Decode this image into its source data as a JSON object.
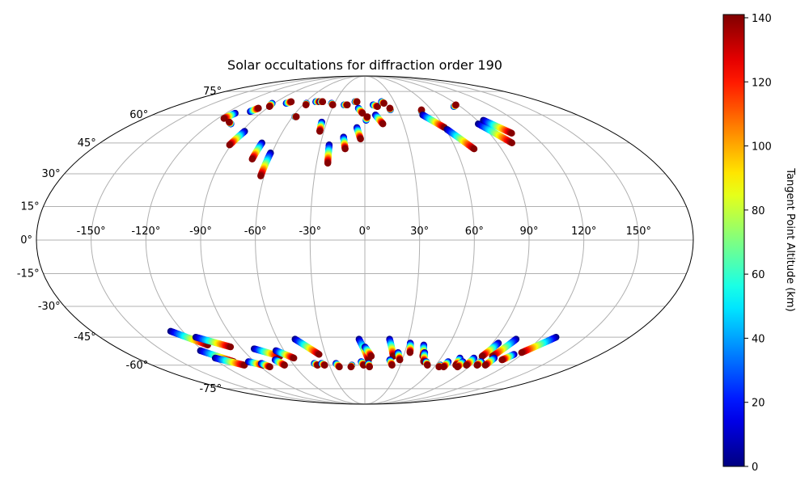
{
  "chart_data": {
    "type": "scatter",
    "projection": "mollweide",
    "title": "Solar occultations for diffraction order 190",
    "lon_ticks": [
      -150,
      -120,
      -90,
      -60,
      -30,
      0,
      30,
      60,
      90,
      120,
      150
    ],
    "lon_tick_labels": [
      "-150°",
      "-120°",
      "-90°",
      "-60°",
      "-30°",
      "0°",
      "30°",
      "60°",
      "90°",
      "120°",
      "150°"
    ],
    "lat_ticks": [
      75,
      60,
      45,
      30,
      15,
      0,
      -15,
      -30,
      -45,
      -60,
      -75
    ],
    "lat_tick_labels": [
      "75°",
      "60°",
      "45°",
      "30°",
      "15°",
      "0°",
      "-15°",
      "-30°",
      "-45°",
      "-60°",
      "-75°"
    ],
    "grid": true,
    "colorbar": {
      "label": "Tangent Point Altitude (km)",
      "colormap": "jet",
      "range": [
        0,
        141
      ],
      "ticks": [
        0,
        20,
        40,
        60,
        80,
        100,
        120,
        140
      ],
      "tick_labels": [
        "0",
        "20",
        "40",
        "60",
        "80",
        "100",
        "120",
        "140"
      ]
    },
    "marker_value_range": [
      0,
      140
    ],
    "occultations": [
      {
        "lon_start": -112,
        "lat_start": 61,
        "lon_end": -115,
        "lat_end": 58
      },
      {
        "lon_start": -104,
        "lat_start": 55,
        "lon_end": -107,
        "lat_end": 56
      },
      {
        "lon_start": -101,
        "lat_start": 62,
        "lon_end": -98,
        "lat_end": 64
      },
      {
        "lon_start": -88,
        "lat_start": 51,
        "lon_end": -91,
        "lat_end": 44
      },
      {
        "lon_start": -92,
        "lat_start": 67,
        "lon_end": -90,
        "lat_end": 65
      },
      {
        "lon_start": -78,
        "lat_start": 67,
        "lon_end": -75,
        "lat_end": 68
      },
      {
        "lon_start": -70,
        "lat_start": 45,
        "lon_end": -71,
        "lat_end": 37
      },
      {
        "lon_start": -61,
        "lat_start": 40,
        "lon_end": -62,
        "lat_end": 29
      },
      {
        "lon_start": -58,
        "lat_start": 67,
        "lon_end": -57,
        "lat_end": 66
      },
      {
        "lon_start": -58,
        "lat_start": 59,
        "lon_end": -57,
        "lat_end": 59
      },
      {
        "lon_start": -50,
        "lat_start": 68,
        "lon_end": -46,
        "lat_end": 68
      },
      {
        "lon_start": -45,
        "lat_start": 68,
        "lon_end": -43,
        "lat_end": 68
      },
      {
        "lon_start": -33,
        "lat_start": 67,
        "lon_end": -31,
        "lat_end": 66
      },
      {
        "lon_start": -34,
        "lat_start": 56,
        "lon_end": -33,
        "lat_end": 51
      },
      {
        "lon_start": -24,
        "lat_start": 44,
        "lon_end": -23,
        "lat_end": 35
      },
      {
        "lon_start": -20,
        "lat_start": 66,
        "lon_end": -17,
        "lat_end": 66
      },
      {
        "lon_start": -15,
        "lat_start": 48,
        "lon_end": -13,
        "lat_end": 42
      },
      {
        "lon_start": -10,
        "lat_start": 68,
        "lon_end": -8,
        "lat_end": 68
      },
      {
        "lon_start": -6,
        "lat_start": 64,
        "lon_end": -2,
        "lat_end": 61
      },
      {
        "lon_start": -6,
        "lat_start": 53,
        "lon_end": -3,
        "lat_end": 47
      },
      {
        "lon_start": 1,
        "lat_start": 57,
        "lon_end": 2,
        "lat_end": 59
      },
      {
        "lon_start": 8,
        "lat_start": 66,
        "lon_end": 12,
        "lat_end": 65
      },
      {
        "lon_start": 9,
        "lat_start": 60,
        "lon_end": 14,
        "lat_end": 55
      },
      {
        "lon_start": 17,
        "lat_start": 68,
        "lon_end": 19,
        "lat_end": 67
      },
      {
        "lon_start": 23,
        "lat_start": 63,
        "lon_end": 23,
        "lat_end": 64
      },
      {
        "lon_start": 50,
        "lat_start": 62,
        "lon_end": 51,
        "lat_end": 63
      },
      {
        "lon_start": 49,
        "lat_start": 60,
        "lon_end": 60,
        "lat_end": 53
      },
      {
        "lon_start": 61,
        "lat_start": 52,
        "lon_end": 72,
        "lat_end": 42
      },
      {
        "lon_start": 84,
        "lat_start": 65,
        "lon_end": 88,
        "lat_end": 66
      },
      {
        "lon_start": 88,
        "lat_start": 55,
        "lon_end": 100,
        "lat_end": 45
      },
      {
        "lon_start": 95,
        "lat_start": 57,
        "lon_end": 106,
        "lat_end": 50
      },
      {
        "lon_start": -128,
        "lat_start": -42,
        "lon_end": -112,
        "lat_end": -49
      },
      {
        "lon_start": -115,
        "lat_start": -45,
        "lon_end": -97,
        "lat_end": -50
      },
      {
        "lon_start": -122,
        "lat_start": -52,
        "lon_end": -107,
        "lat_end": -58
      },
      {
        "lon_start": -118,
        "lat_start": -56,
        "lon_end": -102,
        "lat_end": -60
      },
      {
        "lon_start": -95,
        "lat_start": -58,
        "lon_end": -86,
        "lat_end": -60
      },
      {
        "lon_start": -86,
        "lat_start": -59,
        "lon_end": -82,
        "lat_end": -61
      },
      {
        "lon_start": -81,
        "lat_start": -51,
        "lon_end": -66,
        "lat_end": -55
      },
      {
        "lon_start": -66,
        "lat_start": -52,
        "lon_end": -56,
        "lat_end": -56
      },
      {
        "lon_start": -72,
        "lat_start": -57,
        "lon_end": -68,
        "lat_end": -60
      },
      {
        "lon_start": -48,
        "lat_start": -46,
        "lon_end": -35,
        "lat_end": -54
      },
      {
        "lon_start": -42,
        "lat_start": -59,
        "lon_end": -40,
        "lat_end": -60
      },
      {
        "lon_start": -36,
        "lat_start": -59,
        "lon_end": -34,
        "lat_end": -60
      },
      {
        "lon_start": -24,
        "lat_start": -59,
        "lon_end": -22,
        "lat_end": -61
      },
      {
        "lon_start": -11,
        "lat_start": -60,
        "lon_end": -12,
        "lat_end": -61
      },
      {
        "lon_start": -4,
        "lat_start": -46,
        "lon_end": 3,
        "lat_end": -57
      },
      {
        "lon_start": 0,
        "lat_start": -50,
        "lon_end": 5,
        "lat_end": -55
      },
      {
        "lon_start": -3,
        "lat_start": -58,
        "lon_end": -1,
        "lat_end": -60
      },
      {
        "lon_start": 3,
        "lat_start": -59,
        "lon_end": 4,
        "lat_end": -61
      },
      {
        "lon_start": 17,
        "lat_start": -46,
        "lon_end": 22,
        "lat_end": -55
      },
      {
        "lon_start": 20,
        "lat_start": -57,
        "lon_end": 23,
        "lat_end": -60
      },
      {
        "lon_start": 25,
        "lat_start": -53,
        "lon_end": 28,
        "lat_end": -57
      },
      {
        "lon_start": 32,
        "lat_start": -48,
        "lon_end": 34,
        "lat_end": -53
      },
      {
        "lon_start": 42,
        "lat_start": -49,
        "lon_end": 45,
        "lat_end": -55
      },
      {
        "lon_start": 45,
        "lat_start": -53,
        "lon_end": 48,
        "lat_end": -58
      },
      {
        "lon_start": 50,
        "lat_start": -58,
        "lon_end": 53,
        "lat_end": -60
      },
      {
        "lon_start": 64,
        "lat_start": -60,
        "lon_end": 64,
        "lat_end": -61
      },
      {
        "lon_start": 68,
        "lat_start": -58,
        "lon_end": 68,
        "lat_end": -61
      },
      {
        "lon_start": 75,
        "lat_start": -56,
        "lon_end": 77,
        "lat_end": -60
      },
      {
        "lon_start": 80,
        "lat_start": -58,
        "lon_end": 80,
        "lat_end": -61
      },
      {
        "lon_start": 86,
        "lat_start": -56,
        "lon_end": 86,
        "lat_end": -60
      },
      {
        "lon_start": 94,
        "lat_start": -48,
        "lon_end": 91,
        "lat_end": -55
      },
      {
        "lon_start": 104,
        "lat_start": -46,
        "lon_end": 99,
        "lat_end": -55
      },
      {
        "lon_start": 95,
        "lat_start": -58,
        "lon_end": 95,
        "lat_end": -60
      },
      {
        "lon_start": 102,
        "lat_start": -56,
        "lon_end": 102,
        "lat_end": -60
      },
      {
        "lon_start": 114,
        "lat_start": -54,
        "lon_end": 110,
        "lat_end": -57
      },
      {
        "lon_start": 130,
        "lat_start": -45,
        "lon_end": 118,
        "lat_end": -53
      }
    ]
  }
}
